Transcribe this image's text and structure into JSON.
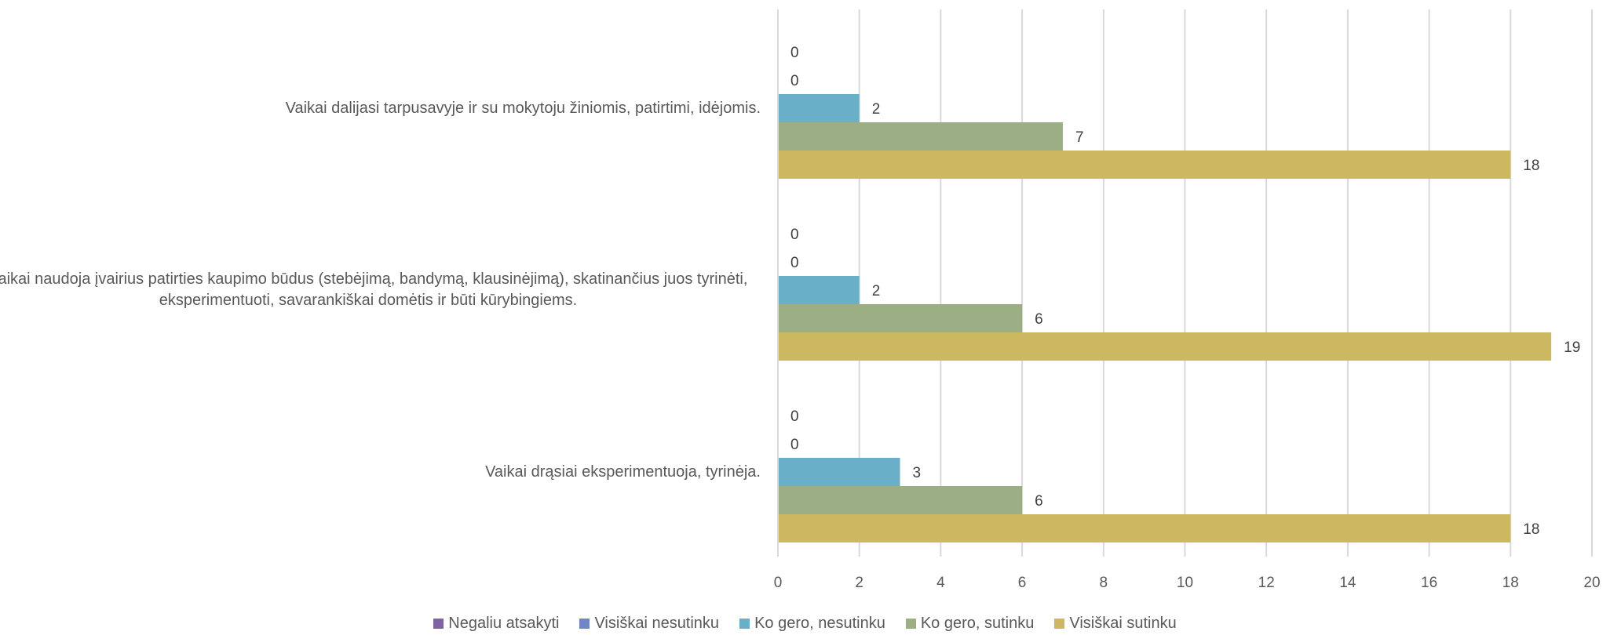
{
  "chart_data": {
    "type": "bar",
    "orientation": "horizontal",
    "categories": [
      "Vaikai dalijasi tarpusavyje ir su mokytoju žiniomis, patirtimi, idėjomis.",
      "Vaikai naudoja įvairius patirties kaupimo būdus (stebėjimą, bandymą, klausinėjimą), skatinančius juos tyrinėti, eksperimentuoti, savarankiškai domėtis ir būti kūrybingiems.",
      "Vaikai drąsiai eksperimentuoja, tyrinėja."
    ],
    "series": [
      {
        "name": "Negaliu atsakyti",
        "color": "#8064a2",
        "values": [
          0,
          0,
          0
        ]
      },
      {
        "name": "Visiškai nesutinku",
        "color": "#6f87c9",
        "values": [
          0,
          0,
          0
        ]
      },
      {
        "name": "Ko gero, nesutinku",
        "color": "#6aafc8",
        "values": [
          2,
          2,
          3
        ]
      },
      {
        "name": "Ko gero, sutinku",
        "color": "#9caf84",
        "values": [
          7,
          6,
          6
        ]
      },
      {
        "name": "Visiškai sutinku",
        "color": "#cdb862",
        "values": [
          18,
          19,
          18
        ]
      }
    ],
    "xlim": [
      0,
      20
    ],
    "xticks": [
      "0",
      "2",
      "4",
      "6",
      "8",
      "10",
      "12",
      "14",
      "16",
      "18",
      "20"
    ],
    "grid": "vertical",
    "legend_position": "bottom",
    "data_labels": true
  }
}
